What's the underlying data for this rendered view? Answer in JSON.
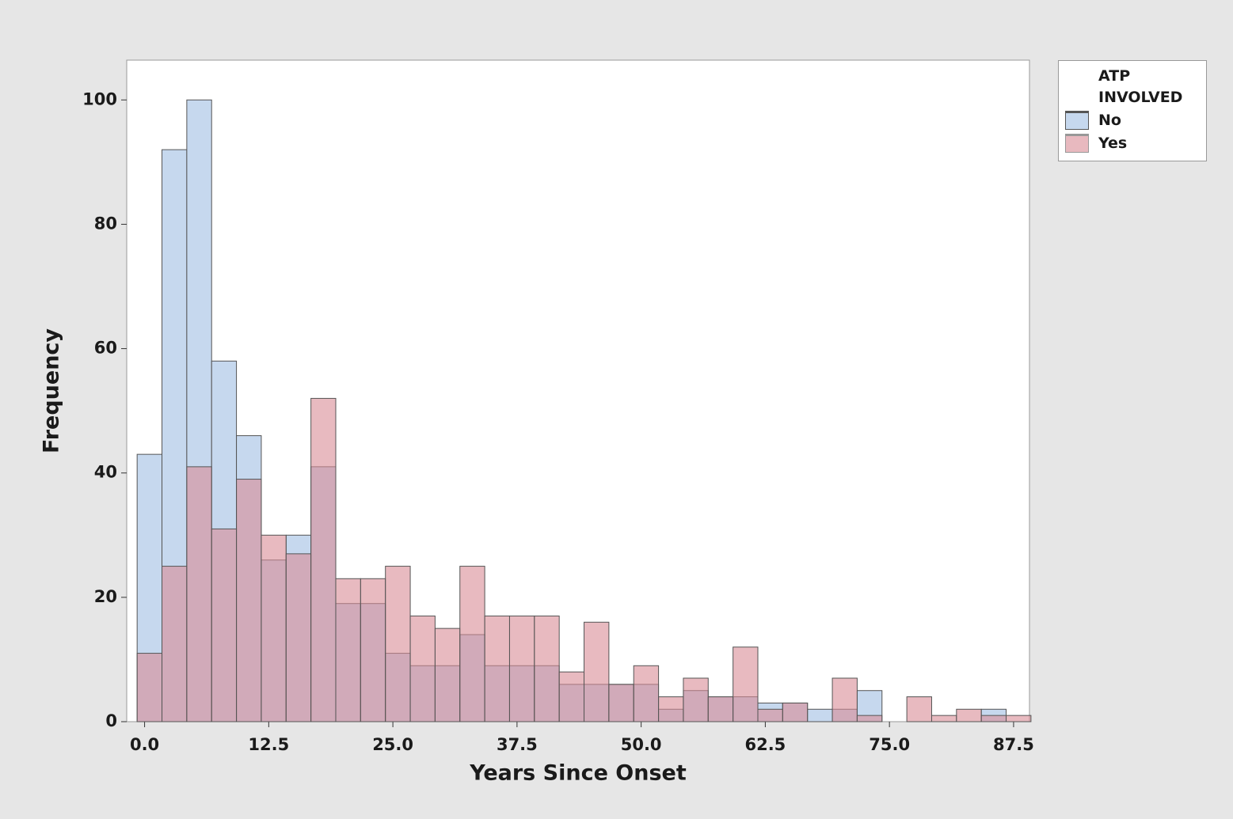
{
  "chart_data": {
    "type": "histogram",
    "xlabel": "Years Since Onset",
    "ylabel": "Frequency",
    "legend_title": "ATP INVOLVED",
    "bins": [
      -0.75,
      1.75,
      4.25,
      6.75,
      9.25,
      11.75,
      14.25,
      16.75,
      19.25,
      21.75,
      24.25,
      26.75,
      29.25,
      31.75,
      34.25,
      36.75,
      39.25,
      41.75,
      44.25,
      46.75,
      49.25,
      51.75,
      54.25,
      56.75,
      59.25,
      61.75,
      64.25,
      66.75,
      69.25,
      71.75,
      74.25,
      76.75,
      79.25,
      81.75,
      84.25,
      86.75,
      89.25
    ],
    "series": [
      {
        "name": "No",
        "color": "#c6d8ee",
        "values": [
          43,
          92,
          100,
          58,
          46,
          26,
          30,
          41,
          19,
          19,
          11,
          9,
          9,
          14,
          9,
          9,
          9,
          6,
          6,
          6,
          6,
          2,
          5,
          4,
          4,
          3,
          3,
          2,
          2,
          5,
          0,
          0,
          0,
          0,
          2,
          0
        ]
      },
      {
        "name": "Yes",
        "color": "#d98c96",
        "values": [
          11,
          25,
          41,
          31,
          39,
          30,
          27,
          52,
          23,
          23,
          25,
          17,
          15,
          25,
          17,
          17,
          17,
          8,
          16,
          6,
          9,
          4,
          7,
          4,
          12,
          2,
          3,
          0,
          7,
          1,
          0,
          4,
          1,
          2,
          1,
          1
        ]
      }
    ],
    "xlim": [
      -1.8,
      89.1
    ],
    "ylim": [
      0,
      106.4
    ],
    "xticks": [
      {
        "value": 0,
        "label": "0.0"
      },
      12.5,
      {
        "value": 25,
        "label": "25.0"
      },
      37.5,
      {
        "value": 50,
        "label": "50.0"
      },
      62.5,
      {
        "value": 75,
        "label": "75.0"
      },
      87.5
    ],
    "yticks": [
      0,
      20,
      40,
      60,
      80,
      100
    ],
    "legend": "right"
  }
}
